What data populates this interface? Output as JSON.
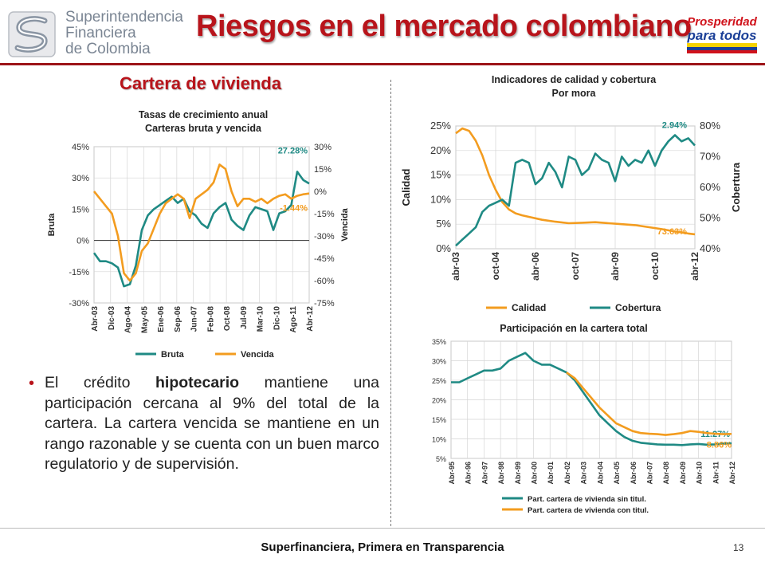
{
  "header": {
    "logo_lines": [
      "Superintendencia",
      "Financiera",
      "de Colombia"
    ],
    "title": "Riesgos en el mercado colombiano",
    "badge_lines": [
      "Prosperidad",
      "para todos"
    ]
  },
  "section_title": "Cartera de vivienda",
  "bullet": {
    "pre": "El crédito ",
    "bold": "hipotecario",
    "post": " mantiene una participación cercana al 9% del total de la cartera. La cartera vencida se mantiene en un rango razonable y se cuenta con un buen marco regulatorio y de supervisión."
  },
  "footer": {
    "text": "Superfinanciera, Primera en Transparencia",
    "page": "13"
  },
  "colors": {
    "teal": "#1f8a84",
    "orange": "#f39c1f",
    "red": "#b8141b"
  },
  "chart_data": [
    {
      "type": "line",
      "title_lines": [
        "Tasas de crecimiento anual",
        "Carteras bruta y vencida"
      ],
      "x_ticks": [
        "Abr-03",
        "Dic-03",
        "Ago-04",
        "May-05",
        "Ene-06",
        "Sep-06",
        "Jun-07",
        "Feb-08",
        "Oct-08",
        "Jul-09",
        "Mar-10",
        "Dic-10",
        "Ago-11",
        "Abr-12"
      ],
      "ylabel_left": "Bruta",
      "ylabel_right": "Vencida",
      "y_left_ticks": [
        "45%",
        "30%",
        "15%",
        "0%",
        "-15%",
        "-30%"
      ],
      "y_right_ticks": [
        "30%",
        "15%",
        "0%",
        "-15%",
        "-30%",
        "-45%",
        "-60%",
        "-75%"
      ],
      "ylim_left": [
        -30,
        45
      ],
      "ylim_right": [
        -75,
        30
      ],
      "legend": "bottom",
      "annotations": [
        "27.28%",
        "-1.44%"
      ],
      "series": [
        {
          "name": "Bruta",
          "axis": "left",
          "color": "#1f8a84",
          "x": [
            2003.25,
            2003.5,
            2003.75,
            2004.0,
            2004.25,
            2004.5,
            2004.75,
            2005.0,
            2005.25,
            2005.5,
            2005.75,
            2006.0,
            2006.25,
            2006.5,
            2006.75,
            2007.0,
            2007.25,
            2007.5,
            2007.75,
            2008.0,
            2008.25,
            2008.5,
            2008.75,
            2009.0,
            2009.25,
            2009.5,
            2009.75,
            2010.0,
            2010.25,
            2010.5,
            2010.75,
            2011.0,
            2011.25,
            2011.5,
            2011.75,
            2012.0,
            2012.25
          ],
          "values": [
            -6,
            -10,
            -10,
            -11,
            -13,
            -22,
            -21,
            -12,
            5,
            12,
            15,
            17,
            19,
            21,
            18,
            20,
            14,
            12,
            8,
            6,
            13,
            16,
            18,
            10,
            7,
            5,
            12,
            16,
            15,
            14,
            5,
            13,
            14,
            17,
            33,
            29,
            27.28
          ]
        },
        {
          "name": "Vencida",
          "axis": "right",
          "color": "#f39c1f",
          "x": [
            2003.25,
            2003.5,
            2003.75,
            2004.0,
            2004.25,
            2004.5,
            2004.75,
            2005.0,
            2005.25,
            2005.5,
            2005.75,
            2006.0,
            2006.25,
            2006.5,
            2006.75,
            2007.0,
            2007.25,
            2007.5,
            2007.75,
            2008.0,
            2008.25,
            2008.5,
            2008.75,
            2009.0,
            2009.25,
            2009.5,
            2009.75,
            2010.0,
            2010.25,
            2010.5,
            2010.75,
            2011.0,
            2011.25,
            2011.5,
            2011.75,
            2012.0,
            2012.25
          ],
          "values": [
            0,
            -5,
            -10,
            -15,
            -30,
            -55,
            -60,
            -55,
            -40,
            -35,
            -25,
            -15,
            -8,
            -5,
            -2,
            -5,
            -18,
            -5,
            -2,
            1,
            6,
            18,
            15,
            0,
            -10,
            -5,
            -5,
            -7,
            -5,
            -8,
            -5,
            -3,
            -2,
            -5,
            -3,
            -2,
            -1.44
          ]
        }
      ]
    },
    {
      "type": "line",
      "title_lines": [
        "Indicadores de calidad y cobertura",
        "Por mora"
      ],
      "x_ticks": [
        "abr-03",
        "oct-04",
        "abr-06",
        "oct-07",
        "abr-09",
        "oct-10",
        "abr-12"
      ],
      "ylabel_left": "Calidad",
      "ylabel_right": "Cobertura",
      "y_left_ticks": [
        "25%",
        "20%",
        "15%",
        "10%",
        "5%",
        "0%"
      ],
      "y_right_ticks": [
        "80%",
        "70%",
        "60%",
        "50%",
        "40%"
      ],
      "ylim_left": [
        0,
        25
      ],
      "ylim_right": [
        40,
        80
      ],
      "legend": "bottom",
      "annotations": [
        "73.63%",
        "2.94%"
      ],
      "series": [
        {
          "name": "Calidad",
          "axis": "left",
          "color": "#f39c1f",
          "x": [
            2003.25,
            2003.5,
            2003.75,
            2004.0,
            2004.25,
            2004.5,
            2004.75,
            2005.0,
            2005.25,
            2005.5,
            2005.75,
            2006.0,
            2006.5,
            2007.0,
            2007.5,
            2008.0,
            2008.5,
            2009.0,
            2009.5,
            2010.0,
            2010.5,
            2011.0,
            2011.5,
            2012.0,
            2012.25
          ],
          "values": [
            23.5,
            24.5,
            24.0,
            22.0,
            19.0,
            15.0,
            12.0,
            9.5,
            8.0,
            7.2,
            6.8,
            6.5,
            5.9,
            5.5,
            5.2,
            5.3,
            5.4,
            5.2,
            5.0,
            4.8,
            4.4,
            4.0,
            3.5,
            3.1,
            2.94
          ]
        },
        {
          "name": "Cobertura",
          "axis": "right",
          "color": "#1f8a84",
          "x": [
            2003.25,
            2003.5,
            2003.75,
            2004.0,
            2004.25,
            2004.5,
            2004.75,
            2005.0,
            2005.25,
            2005.5,
            2005.75,
            2006.0,
            2006.25,
            2006.5,
            2006.75,
            2007.0,
            2007.25,
            2007.5,
            2007.75,
            2008.0,
            2008.25,
            2008.5,
            2008.75,
            2009.0,
            2009.25,
            2009.5,
            2009.75,
            2010.0,
            2010.25,
            2010.5,
            2010.75,
            2011.0,
            2011.25,
            2011.5,
            2011.75,
            2012.0,
            2012.25
          ],
          "values": [
            41,
            43,
            45,
            47,
            52,
            54,
            55,
            56,
            54,
            68,
            69,
            68,
            61,
            63,
            68,
            65,
            60,
            70,
            69,
            64,
            66,
            71,
            69,
            68,
            62,
            70,
            67,
            69,
            68,
            72,
            67,
            72,
            75,
            77,
            75,
            76,
            73.63
          ]
        }
      ]
    },
    {
      "type": "line",
      "title_lines": [
        "Participación en la cartera total"
      ],
      "x_ticks": [
        "Abr-95",
        "Abr-96",
        "Abr-97",
        "Abr-98",
        "Abr-99",
        "Abr-00",
        "Abr-01",
        "Abr-02",
        "Abr-03",
        "Abr-04",
        "Abr-05",
        "Abr-06",
        "Abr-07",
        "Abr-08",
        "Abr-09",
        "Abr-10",
        "Abr-11",
        "Abr-12"
      ],
      "y_left_ticks": [
        "35%",
        "30%",
        "25%",
        "20%",
        "15%",
        "10%",
        "5%"
      ],
      "ylim_left": [
        5,
        35
      ],
      "legend": "bottom",
      "annotations": [
        "11.27%",
        "8.86%"
      ],
      "series": [
        {
          "name": "Part. cartera de vivienda sin titul.",
          "axis": "left",
          "color": "#1f8a84",
          "x": [
            1995.25,
            1995.75,
            1996.25,
            1996.75,
            1997.25,
            1997.75,
            1998.25,
            1998.75,
            1999.25,
            1999.75,
            2000.25,
            2000.75,
            2001.25,
            2001.75,
            2002.25,
            2002.75,
            2003.25,
            2003.75,
            2004.25,
            2004.75,
            2005.25,
            2005.75,
            2006.25,
            2006.75,
            2007.25,
            2007.75,
            2008.25,
            2008.75,
            2009.25,
            2009.75,
            2010.25,
            2010.75,
            2011.25,
            2011.75,
            2012.25
          ],
          "values": [
            24.5,
            24.5,
            25.5,
            26.5,
            27.5,
            27.5,
            28,
            30,
            31,
            32,
            30,
            29,
            29,
            28,
            27,
            25,
            22,
            19,
            16,
            14,
            12,
            10.5,
            9.5,
            9,
            8.8,
            8.6,
            8.5,
            8.5,
            8.4,
            8.6,
            8.7,
            8.5,
            8.6,
            8.8,
            8.86
          ]
        },
        {
          "name": "Part. cartera de vivienda con titul.",
          "axis": "left",
          "color": "#f39c1f",
          "x": [
            2002.25,
            2002.75,
            2003.25,
            2003.75,
            2004.25,
            2004.75,
            2005.25,
            2005.75,
            2006.25,
            2006.75,
            2007.25,
            2007.75,
            2008.25,
            2008.75,
            2009.25,
            2009.75,
            2010.25,
            2010.75,
            2011.25,
            2011.75,
            2012.25
          ],
          "values": [
            27,
            25.5,
            23,
            20.5,
            18,
            16,
            14,
            13,
            12,
            11.5,
            11.3,
            11.2,
            11,
            11.2,
            11.5,
            12,
            11.8,
            11.5,
            11.3,
            11.2,
            11.27
          ]
        }
      ]
    }
  ]
}
